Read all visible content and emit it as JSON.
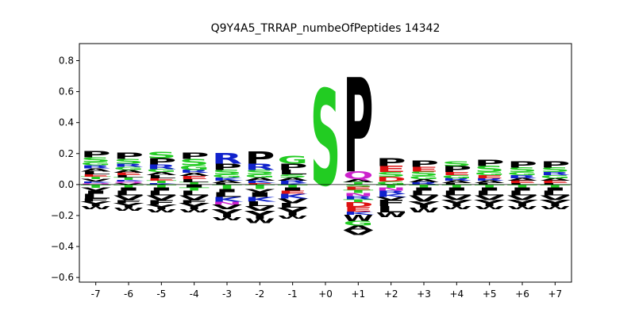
{
  "chart_data": {
    "type": "sequence-logo",
    "title": "Q9Y4A5_TRRAP_numbeOfPeptides 14342",
    "xlabel": "",
    "ylabel": "",
    "ylim": [
      -0.63,
      0.91
    ],
    "yticks": [
      -0.6,
      -0.4,
      -0.2,
      0.0,
      0.2,
      0.4,
      0.6,
      0.8
    ],
    "ytick_labels": [
      "−0.6",
      "−0.4",
      "−0.2",
      "0.0",
      "0.2",
      "0.4",
      "0.6",
      "0.8"
    ],
    "positions": [
      "-7",
      "-6",
      "-5",
      "-4",
      "-3",
      "-2",
      "-1",
      "+0",
      "+1",
      "+2",
      "+3",
      "+4",
      "+5",
      "+6",
      "+7"
    ],
    "colors": {
      "P": "#000000",
      "L": "#000000",
      "Y": "#000000",
      "V": "#000000",
      "A": "#000000",
      "I": "#000000",
      "M": "#000000",
      "F": "#000000",
      "W": "#000000",
      "S": "#22cc22",
      "G": "#22cc22",
      "T": "#22cc22",
      "C": "#22cc22",
      "R": "#1022cc",
      "K": "#1022cc",
      "H": "#1022cc",
      "E": "#dd1111",
      "D": "#dd1111",
      "Q": "#cc22cc",
      "N": "#cc22cc"
    },
    "columns": [
      {
        "pos": "-7",
        "positive": [
          [
            "P",
            0.04
          ],
          [
            "S",
            0.03
          ],
          [
            "G",
            0.02
          ],
          [
            "R",
            0.02
          ],
          [
            "A",
            0.02
          ],
          [
            "L",
            0.02
          ],
          [
            "E",
            0.015
          ],
          [
            "T",
            0.015
          ],
          [
            "V",
            0.015
          ],
          [
            "K",
            0.01
          ],
          [
            "Q",
            0.01
          ]
        ],
        "negative": [
          [
            "T",
            0.02
          ],
          [
            "V",
            0.02
          ],
          [
            "I",
            0.02
          ],
          [
            "L",
            0.03
          ],
          [
            "F",
            0.02
          ],
          [
            "Y",
            0.03
          ],
          [
            "W",
            0.02
          ]
        ]
      },
      {
        "pos": "-6",
        "positive": [
          [
            "P",
            0.04
          ],
          [
            "S",
            0.03
          ],
          [
            "R",
            0.02
          ],
          [
            "G",
            0.02
          ],
          [
            "A",
            0.02
          ],
          [
            "E",
            0.015
          ],
          [
            "L",
            0.015
          ],
          [
            "T",
            0.015
          ],
          [
            "K",
            0.01
          ],
          [
            "Q",
            0.01
          ],
          [
            "V",
            0.01
          ]
        ],
        "negative": [
          [
            "T",
            0.02
          ],
          [
            "I",
            0.02
          ],
          [
            "L",
            0.03
          ],
          [
            "V",
            0.03
          ],
          [
            "F",
            0.02
          ],
          [
            "Y",
            0.03
          ],
          [
            "W",
            0.02
          ]
        ]
      },
      {
        "pos": "-5",
        "positive": [
          [
            "S",
            0.04
          ],
          [
            "P",
            0.04
          ],
          [
            "R",
            0.03
          ],
          [
            "G",
            0.02
          ],
          [
            "A",
            0.02
          ],
          [
            "L",
            0.02
          ],
          [
            "E",
            0.015
          ],
          [
            "T",
            0.015
          ],
          [
            "K",
            0.01
          ]
        ],
        "negative": [
          [
            "T",
            0.02
          ],
          [
            "I",
            0.02
          ],
          [
            "L",
            0.03
          ],
          [
            "V",
            0.03
          ],
          [
            "F",
            0.03
          ],
          [
            "Y",
            0.03
          ],
          [
            "W",
            0.02
          ]
        ]
      },
      {
        "pos": "-4",
        "positive": [
          [
            "P",
            0.04
          ],
          [
            "S",
            0.04
          ],
          [
            "G",
            0.03
          ],
          [
            "R",
            0.02
          ],
          [
            "A",
            0.02
          ],
          [
            "E",
            0.02
          ],
          [
            "L",
            0.02
          ],
          [
            "T",
            0.015
          ]
        ],
        "negative": [
          [
            "I",
            0.02
          ],
          [
            "T",
            0.02
          ],
          [
            "L",
            0.03
          ],
          [
            "V",
            0.03
          ],
          [
            "F",
            0.02
          ],
          [
            "Y",
            0.04
          ],
          [
            "W",
            0.02
          ]
        ]
      },
      {
        "pos": "-3",
        "positive": [
          [
            "R",
            0.07
          ],
          [
            "P",
            0.04
          ],
          [
            "S",
            0.03
          ],
          [
            "G",
            0.02
          ],
          [
            "K",
            0.02
          ],
          [
            "A",
            0.015
          ],
          [
            "L",
            0.01
          ]
        ],
        "negative": [
          [
            "T",
            0.03
          ],
          [
            "I",
            0.02
          ],
          [
            "L",
            0.03
          ],
          [
            "K",
            0.03
          ],
          [
            "N",
            0.02
          ],
          [
            "V",
            0.03
          ],
          [
            "Y",
            0.05
          ],
          [
            "W",
            0.02
          ]
        ]
      },
      {
        "pos": "-2",
        "positive": [
          [
            "P",
            0.08
          ],
          [
            "R",
            0.04
          ],
          [
            "S",
            0.03
          ],
          [
            "G",
            0.02
          ],
          [
            "A",
            0.02
          ],
          [
            "K",
            0.015
          ],
          [
            "E",
            0.01
          ]
        ],
        "negative": [
          [
            "T",
            0.03
          ],
          [
            "V",
            0.02
          ],
          [
            "I",
            0.03
          ],
          [
            "K",
            0.03
          ],
          [
            "L",
            0.03
          ],
          [
            "V",
            0.03
          ],
          [
            "Y",
            0.05
          ],
          [
            "W",
            0.03
          ]
        ]
      },
      {
        "pos": "-1",
        "positive": [
          [
            "G",
            0.05
          ],
          [
            "P",
            0.04
          ],
          [
            "L",
            0.03
          ],
          [
            "S",
            0.02
          ],
          [
            "A",
            0.02
          ],
          [
            "R",
            0.015
          ],
          [
            "K",
            0.01
          ]
        ],
        "negative": [
          [
            "T",
            0.02
          ],
          [
            "I",
            0.02
          ],
          [
            "E",
            0.02
          ],
          [
            "K",
            0.03
          ],
          [
            "V",
            0.03
          ],
          [
            "L",
            0.03
          ],
          [
            "Y",
            0.05
          ],
          [
            "W",
            0.02
          ]
        ]
      },
      {
        "pos": "+0",
        "positive": [
          [
            "S",
            0.62
          ],
          [
            "P",
            0.0
          ]
        ],
        "negative": []
      },
      {
        "pos": "+1",
        "positive": [
          [
            "P",
            0.61
          ],
          [
            "Q",
            0.05
          ],
          [
            "A",
            0.02
          ],
          [
            "T",
            0.015
          ]
        ],
        "negative": [
          [
            "S",
            0.015
          ],
          [
            "E",
            0.02
          ],
          [
            "T",
            0.02
          ],
          [
            "N",
            0.02
          ],
          [
            "R",
            0.02
          ],
          [
            "T",
            0.02
          ],
          [
            "D",
            0.03
          ],
          [
            "E",
            0.03
          ],
          [
            "K",
            0.02
          ],
          [
            "W",
            0.04
          ],
          [
            "G",
            0.03
          ],
          [
            "A",
            0.03
          ],
          [
            "V",
            0.03
          ]
        ]
      },
      {
        "pos": "+2",
        "positive": [
          [
            "P",
            0.05
          ],
          [
            "E",
            0.04
          ],
          [
            "S",
            0.03
          ],
          [
            "D",
            0.03
          ],
          [
            "G",
            0.02
          ]
        ],
        "negative": [
          [
            "T",
            0.02
          ],
          [
            "N",
            0.02
          ],
          [
            "R",
            0.02
          ],
          [
            "K",
            0.02
          ],
          [
            "V",
            0.02
          ],
          [
            "F",
            0.04
          ],
          [
            "L",
            0.04
          ],
          [
            "W",
            0.03
          ]
        ]
      },
      {
        "pos": "+3",
        "positive": [
          [
            "P",
            0.04
          ],
          [
            "E",
            0.03
          ],
          [
            "S",
            0.03
          ],
          [
            "G",
            0.02
          ],
          [
            "A",
            0.02
          ],
          [
            "R",
            0.015
          ]
        ],
        "negative": [
          [
            "T",
            0.02
          ],
          [
            "I",
            0.02
          ],
          [
            "L",
            0.03
          ],
          [
            "V",
            0.04
          ],
          [
            "Y",
            0.04
          ],
          [
            "W",
            0.03
          ]
        ]
      },
      {
        "pos": "+4",
        "positive": [
          [
            "S",
            0.03
          ],
          [
            "P",
            0.04
          ],
          [
            "E",
            0.02
          ],
          [
            "G",
            0.02
          ],
          [
            "R",
            0.015
          ],
          [
            "A",
            0.015
          ],
          [
            "L",
            0.01
          ]
        ],
        "negative": [
          [
            "T",
            0.02
          ],
          [
            "I",
            0.02
          ],
          [
            "L",
            0.03
          ],
          [
            "V",
            0.03
          ],
          [
            "Y",
            0.04
          ],
          [
            "W",
            0.02
          ]
        ]
      },
      {
        "pos": "+5",
        "positive": [
          [
            "P",
            0.04
          ],
          [
            "S",
            0.04
          ],
          [
            "G",
            0.02
          ],
          [
            "E",
            0.02
          ],
          [
            "R",
            0.015
          ],
          [
            "A",
            0.015
          ],
          [
            "L",
            0.01
          ]
        ],
        "negative": [
          [
            "T",
            0.02
          ],
          [
            "I",
            0.02
          ],
          [
            "L",
            0.03
          ],
          [
            "V",
            0.03
          ],
          [
            "Y",
            0.04
          ],
          [
            "W",
            0.02
          ]
        ]
      },
      {
        "pos": "+6",
        "positive": [
          [
            "P",
            0.04
          ],
          [
            "S",
            0.03
          ],
          [
            "G",
            0.02
          ],
          [
            "R",
            0.02
          ],
          [
            "A",
            0.015
          ],
          [
            "E",
            0.015
          ],
          [
            "L",
            0.01
          ]
        ],
        "negative": [
          [
            "T",
            0.02
          ],
          [
            "I",
            0.02
          ],
          [
            "L",
            0.03
          ],
          [
            "V",
            0.03
          ],
          [
            "Y",
            0.04
          ],
          [
            "W",
            0.02
          ]
        ]
      },
      {
        "pos": "+7",
        "positive": [
          [
            "P",
            0.04
          ],
          [
            "S",
            0.03
          ],
          [
            "R",
            0.02
          ],
          [
            "G",
            0.02
          ],
          [
            "A",
            0.015
          ],
          [
            "E",
            0.015
          ],
          [
            "L",
            0.01
          ]
        ],
        "negative": [
          [
            "T",
            0.02
          ],
          [
            "I",
            0.02
          ],
          [
            "L",
            0.03
          ],
          [
            "V",
            0.03
          ],
          [
            "Y",
            0.04
          ],
          [
            "W",
            0.02
          ]
        ]
      }
    ]
  }
}
